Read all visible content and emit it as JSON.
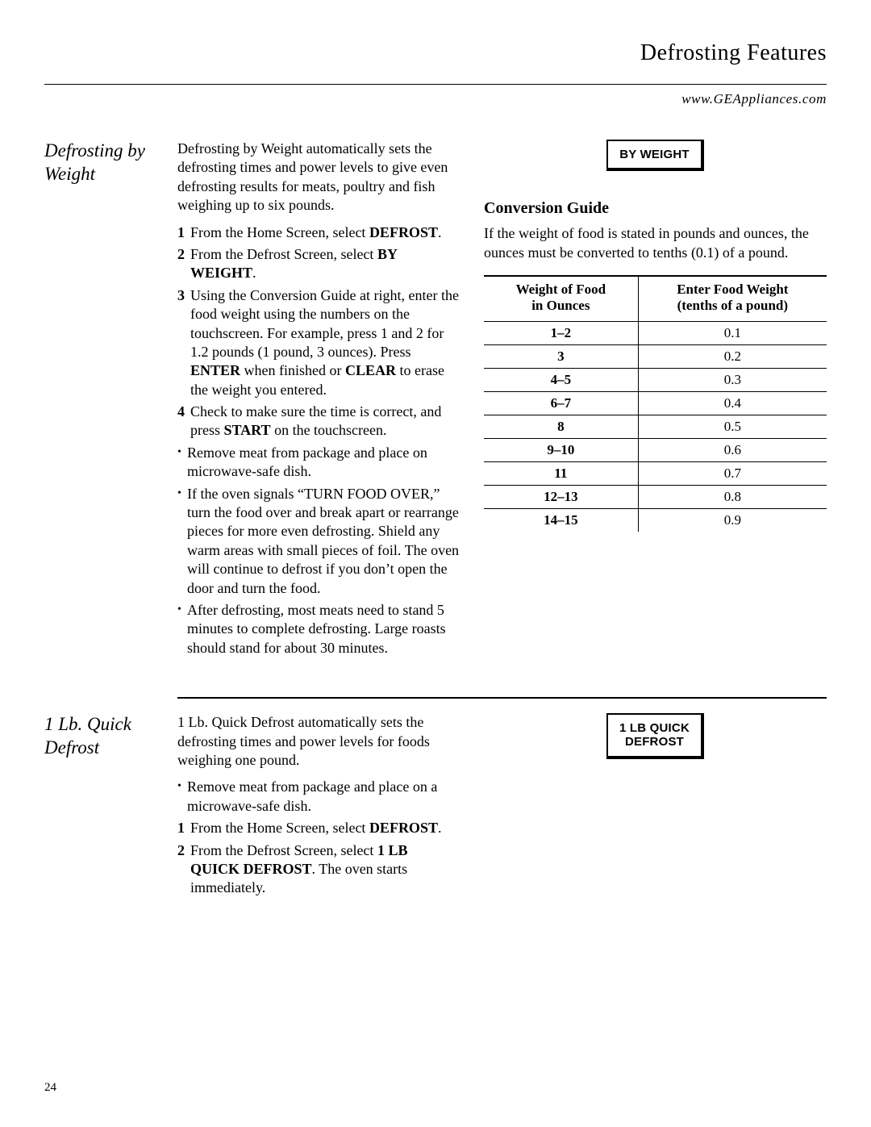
{
  "header": {
    "title": "Defrosting Features",
    "website": "www.GEAppliances.com"
  },
  "section1": {
    "heading": "Defrosting by Weight",
    "intro": "Defrosting by Weight automatically sets the defrosting times and power levels to give even defrosting results for meats, poultry and fish weighing up to six pounds.",
    "steps": {
      "s1_pre": "From the Home Screen, select ",
      "s1_bold": "DEFROST",
      "s1_post": ".",
      "s2_pre": "From the Defrost Screen, select ",
      "s2_bold": "BY WEIGHT",
      "s2_post": ".",
      "s3_a": "Using the Conversion Guide at right, enter the food weight using the numbers on the touchscreen. For example, press 1 and 2 for 1.2 pounds (1 pound, 3 ounces). Press ",
      "s3_enter": "ENTER",
      "s3_b": " when finished or ",
      "s3_clear": "CLEAR",
      "s3_c": " to erase the weight you entered.",
      "s4_a": "Check to make sure the time is correct, and press ",
      "s4_start": "START",
      "s4_b": " on the touchscreen."
    },
    "bullets": {
      "b1": "Remove meat from package and place on microwave-safe dish.",
      "b2": "If the oven signals “TURN FOOD OVER,” turn the food over and break apart or rearrange pieces for more even defrosting. Shield any warm areas with small pieces of foil. The oven will continue to defrost if you don’t open the door and turn the food.",
      "b3": "After defrosting, most meats need to stand 5 minutes to complete defrosting. Large roasts should stand for about 30 minutes."
    },
    "button_label": "BY WEIGHT",
    "guide_title": "Conversion Guide",
    "guide_intro": "If the weight of food is stated in pounds and ounces, the ounces must be converted to tenths (0.1) of a pound.",
    "table": {
      "col1_a": "Weight of Food",
      "col1_b": "in Ounces",
      "col2_a": "Enter Food Weight",
      "col2_b": "(tenths of a pound)",
      "rows": [
        {
          "oz": "1–2",
          "tenths": "0.1"
        },
        {
          "oz": "3",
          "tenths": "0.2"
        },
        {
          "oz": "4–5",
          "tenths": "0.3"
        },
        {
          "oz": "6–7",
          "tenths": "0.4"
        },
        {
          "oz": "8",
          "tenths": "0.5"
        },
        {
          "oz": "9–10",
          "tenths": "0.6"
        },
        {
          "oz": "11",
          "tenths": "0.7"
        },
        {
          "oz": "12–13",
          "tenths": "0.8"
        },
        {
          "oz": "14–15",
          "tenths": "0.9"
        }
      ]
    }
  },
  "section2": {
    "heading": "1 Lb. Quick Defrost",
    "intro": "1 Lb. Quick Defrost automatically sets the defrosting times and power levels for foods weighing one pound.",
    "bullet1": "Remove meat from package and place on a microwave-safe dish.",
    "s1_pre": "From the Home Screen, select ",
    "s1_bold": "DEFROST",
    "s1_post": ".",
    "s2_pre": "From the Defrost Screen, select ",
    "s2_bold": "1 LB QUICK DEFROST",
    "s2_post": ". The oven starts immediately.",
    "button_line1": "1 LB QUICK",
    "button_line2": "DEFROST"
  },
  "page_number": "24"
}
